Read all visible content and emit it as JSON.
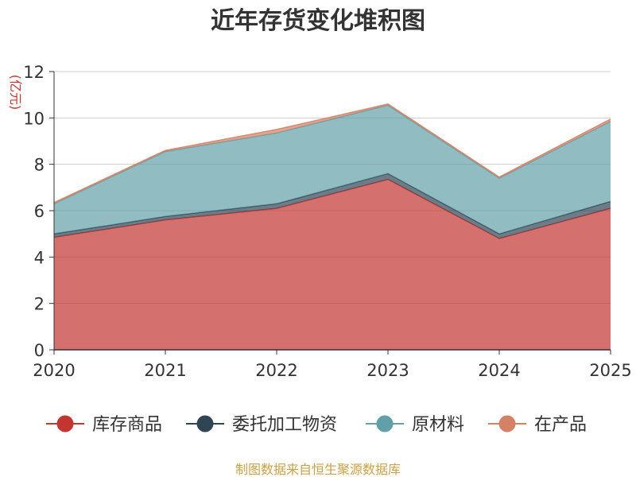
{
  "chart_data": {
    "type": "area",
    "stacked": true,
    "title": "近年存货变化堆积图",
    "ylabel": "(亿元)",
    "categories": [
      "2020",
      "2021",
      "2022",
      "2023",
      "2024",
      "2025"
    ],
    "ylim": [
      0,
      12
    ],
    "yticks": [
      "0",
      "2",
      "4",
      "6",
      "8",
      "10",
      "12"
    ],
    "grid": true,
    "legend_position": "bottom",
    "series": [
      {
        "name": "库存商品",
        "color": "#c23531",
        "values": [
          4.85,
          5.6,
          6.1,
          7.35,
          4.8,
          6.1
        ]
      },
      {
        "name": "委托加工物资",
        "color": "#2f4554",
        "values": [
          0.15,
          0.15,
          0.2,
          0.25,
          0.2,
          0.3
        ]
      },
      {
        "name": "原材料",
        "color": "#61a0a8",
        "values": [
          1.3,
          2.8,
          3.05,
          2.95,
          2.4,
          3.45
        ]
      },
      {
        "name": "在产品",
        "color": "#d48265",
        "values": [
          0.05,
          0.05,
          0.15,
          0.05,
          0.05,
          0.1
        ]
      }
    ]
  },
  "footer": {
    "source": "制图数据来自恒生聚源数据库"
  }
}
